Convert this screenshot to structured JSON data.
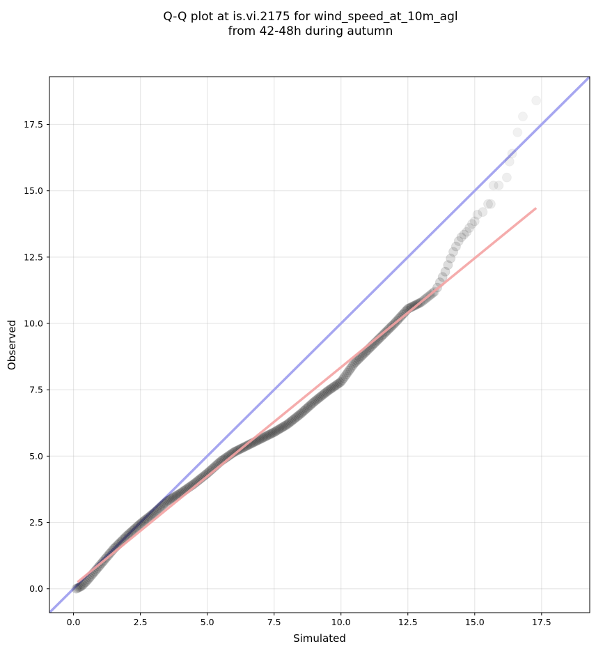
{
  "chart_data": {
    "type": "scatter",
    "title_lines": [
      "Q-Q plot at is.vi.2175 for wind_speed_at_10m_agl",
      "from 42-48h during autumn"
    ],
    "xlabel": "Simulated",
    "ylabel": "Observed",
    "xlim": [
      -0.9,
      19.3
    ],
    "ylim": [
      -0.9,
      19.3
    ],
    "xticks": [
      0.0,
      2.5,
      5.0,
      7.5,
      10.0,
      12.5,
      15.0,
      17.5
    ],
    "yticks": [
      0.0,
      2.5,
      5.0,
      7.5,
      10.0,
      12.5,
      15.0,
      17.5
    ],
    "xtick_labels": [
      "0.0",
      "2.5",
      "5.0",
      "7.5",
      "10.0",
      "12.5",
      "15.0",
      "17.5"
    ],
    "ytick_labels": [
      "0.0",
      "2.5",
      "5.0",
      "7.5",
      "10.0",
      "12.5",
      "15.0",
      "17.5"
    ],
    "grid": true,
    "identity_line": {
      "color": "#a6a6f0",
      "x": [
        -0.9,
        19.3
      ],
      "y": [
        -0.9,
        19.3
      ]
    },
    "fit_line": {
      "color": "#f4a3a3",
      "x": [
        0.15,
        17.3
      ],
      "y": [
        0.25,
        14.35
      ]
    },
    "point_color": "#000000",
    "quantile_anchors": {
      "x": [
        0.1,
        0.3,
        0.5,
        1.0,
        1.5,
        2.0,
        2.5,
        3.0,
        3.5,
        4.0,
        4.5,
        5.0,
        5.5,
        6.0,
        6.5,
        7.0,
        7.5,
        8.0,
        8.5,
        9.0,
        9.5,
        10.0,
        10.5,
        11.0,
        11.5,
        12.0,
        12.5,
        13.0,
        13.5
      ],
      "y": [
        0.0,
        0.1,
        0.3,
        0.9,
        1.5,
        2.0,
        2.45,
        2.85,
        3.3,
        3.6,
        3.95,
        4.35,
        4.8,
        5.15,
        5.4,
        5.65,
        5.9,
        6.2,
        6.6,
        7.05,
        7.45,
        7.8,
        8.5,
        9.0,
        9.5,
        10.0,
        10.55,
        10.8,
        11.2
      ]
    },
    "tail_points": {
      "x": [
        13.6,
        13.7,
        13.8,
        13.9,
        14.0,
        14.1,
        14.2,
        14.3,
        14.4,
        14.5,
        14.6,
        14.7,
        14.8,
        14.9,
        15.0,
        15.1,
        15.3,
        15.5,
        15.6,
        15.7,
        15.9,
        16.2,
        16.3,
        16.4,
        16.6,
        16.8,
        17.3
      ],
      "y": [
        11.35,
        11.55,
        11.75,
        11.95,
        12.2,
        12.45,
        12.7,
        12.9,
        13.1,
        13.25,
        13.35,
        13.45,
        13.6,
        13.75,
        13.85,
        14.1,
        14.2,
        14.5,
        14.5,
        15.2,
        15.2,
        15.5,
        16.1,
        16.4,
        17.2,
        17.8,
        18.4
      ]
    }
  }
}
